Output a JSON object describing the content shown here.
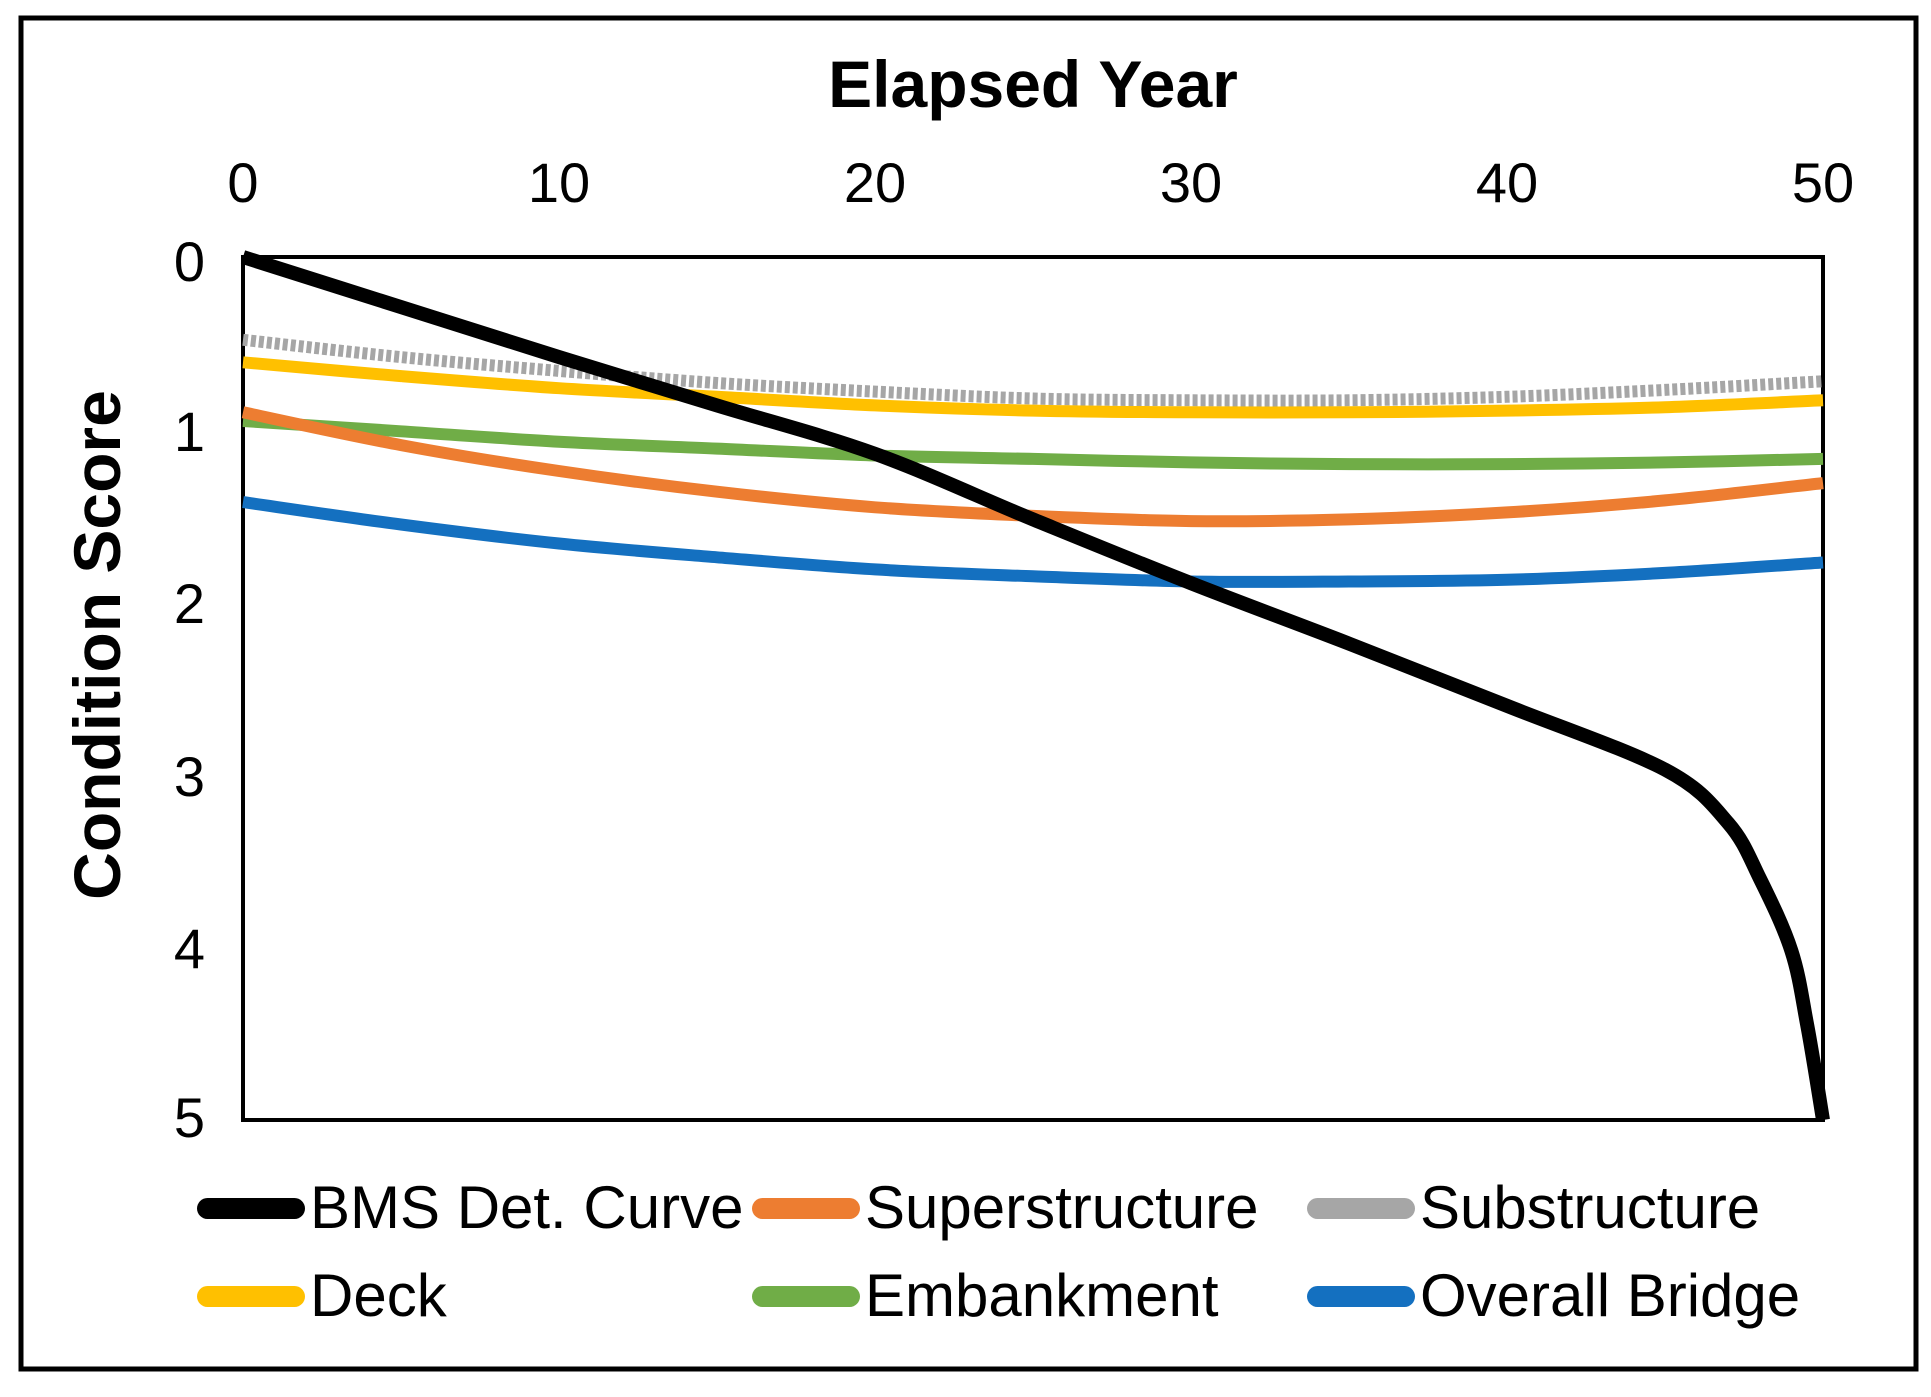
{
  "chart_data": {
    "type": "line",
    "title": "Elapsed Year",
    "xlabel": "Elapsed Year",
    "ylabel": "Condition Score",
    "xlim": [
      0,
      50
    ],
    "ylim": [
      0,
      5
    ],
    "y_inverted": true,
    "grid": false,
    "legend_position": "bottom",
    "x_ticks": [
      "0",
      "10",
      "20",
      "30",
      "40",
      "50"
    ],
    "y_ticks": [
      "0",
      "1",
      "2",
      "3",
      "4",
      "5"
    ],
    "axis_color": "#000000",
    "series": [
      {
        "name": "BMS Det. Curve",
        "color": "#000000",
        "width": 14,
        "dash": "solid",
        "points": [
          [
            0,
            0
          ],
          [
            5,
            0.29
          ],
          [
            10,
            0.58
          ],
          [
            15,
            0.86
          ],
          [
            20,
            1.14
          ],
          [
            25,
            1.52
          ],
          [
            30,
            1.89
          ],
          [
            35,
            2.24
          ],
          [
            40,
            2.6
          ],
          [
            45,
            2.97
          ],
          [
            47,
            3.28
          ],
          [
            48,
            3.6
          ],
          [
            49,
            4.02
          ],
          [
            49.5,
            4.45
          ],
          [
            50,
            5.0
          ]
        ]
      },
      {
        "name": "Superstructure",
        "color": "#ED7D31",
        "width": 12,
        "dash": "solid",
        "points": [
          [
            0,
            0.9
          ],
          [
            5,
            1.09
          ],
          [
            10,
            1.24
          ],
          [
            15,
            1.36
          ],
          [
            20,
            1.45
          ],
          [
            25,
            1.5
          ],
          [
            30,
            1.53
          ],
          [
            35,
            1.52
          ],
          [
            40,
            1.48
          ],
          [
            45,
            1.41
          ],
          [
            50,
            1.31
          ]
        ]
      },
      {
        "name": "Substructure",
        "color": "#A6A6A6",
        "width": 12,
        "dash": "dotted",
        "points": [
          [
            0,
            0.48
          ],
          [
            5,
            0.58
          ],
          [
            10,
            0.66
          ],
          [
            15,
            0.73
          ],
          [
            20,
            0.78
          ],
          [
            25,
            0.82
          ],
          [
            30,
            0.83
          ],
          [
            35,
            0.83
          ],
          [
            40,
            0.81
          ],
          [
            45,
            0.77
          ],
          [
            50,
            0.72
          ]
        ]
      },
      {
        "name": "Deck",
        "color": "#FFC000",
        "width": 12,
        "dash": "solid",
        "points": [
          [
            0,
            0.61
          ],
          [
            5,
            0.69
          ],
          [
            10,
            0.76
          ],
          [
            15,
            0.81
          ],
          [
            20,
            0.86
          ],
          [
            25,
            0.89
          ],
          [
            30,
            0.9
          ],
          [
            35,
            0.9
          ],
          [
            40,
            0.89
          ],
          [
            45,
            0.87
          ],
          [
            50,
            0.83
          ]
        ]
      },
      {
        "name": "Embankment",
        "color": "#70AD47",
        "width": 12,
        "dash": "solid",
        "points": [
          [
            0,
            0.95
          ],
          [
            5,
            1.01
          ],
          [
            10,
            1.07
          ],
          [
            15,
            1.11
          ],
          [
            20,
            1.15
          ],
          [
            25,
            1.17
          ],
          [
            30,
            1.19
          ],
          [
            35,
            1.2
          ],
          [
            40,
            1.2
          ],
          [
            45,
            1.19
          ],
          [
            50,
            1.17
          ]
        ]
      },
      {
        "name": "Overall Bridge",
        "color": "#1470C0",
        "width": 12,
        "dash": "solid",
        "points": [
          [
            0,
            1.42
          ],
          [
            5,
            1.55
          ],
          [
            10,
            1.66
          ],
          [
            15,
            1.74
          ],
          [
            20,
            1.81
          ],
          [
            25,
            1.85
          ],
          [
            30,
            1.88
          ],
          [
            35,
            1.88
          ],
          [
            40,
            1.87
          ],
          [
            45,
            1.83
          ],
          [
            50,
            1.77
          ]
        ]
      }
    ]
  }
}
